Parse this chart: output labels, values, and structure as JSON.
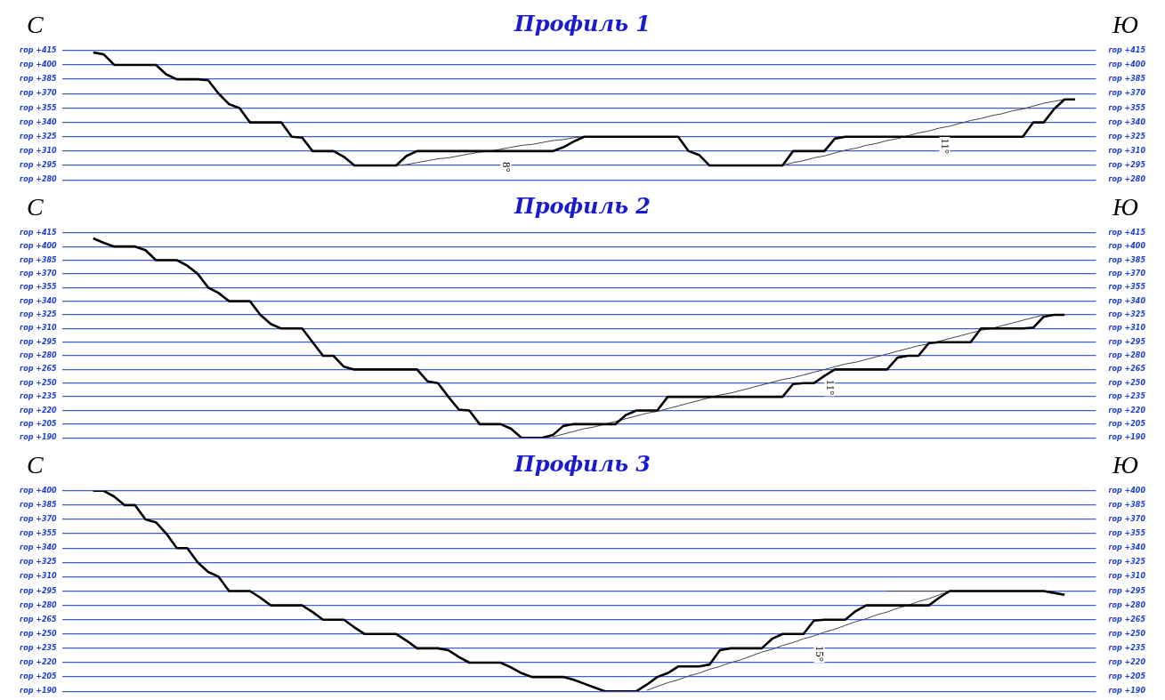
{
  "chart_data": [
    {
      "type": "line",
      "title": "Профиль 1",
      "categories": [
        null,
        null,
        null,
        null,
        null,
        null,
        null,
        null,
        null,
        null,
        null,
        null,
        null,
        null,
        null,
        null,
        null,
        null,
        null,
        null,
        null,
        null,
        null,
        null,
        null,
        null,
        null,
        null,
        null,
        null,
        null,
        null,
        null,
        null,
        null,
        null,
        null,
        null,
        null,
        null,
        null,
        null,
        null,
        null,
        null,
        null,
        null,
        null,
        null,
        null,
        null,
        null,
        null,
        null,
        null,
        null,
        null,
        null,
        null,
        null,
        null,
        null,
        null,
        null,
        null,
        null,
        null,
        null,
        null,
        null,
        null,
        null,
        null,
        null,
        null,
        null,
        null,
        null,
        null,
        null,
        null,
        null,
        null,
        null,
        null,
        null,
        null,
        null,
        null,
        null,
        null,
        null,
        null,
        null,
        null,
        null,
        null,
        null,
        null,
        null
      ],
      "ylim": [
        280,
        415
      ],
      "yticks": [
        {
          "value": 415,
          "label": "гор +415"
        },
        {
          "value": 400,
          "label": "гор +400"
        },
        {
          "value": 385,
          "label": "гор +385"
        },
        {
          "value": 370,
          "label": "гор +370"
        },
        {
          "value": 355,
          "label": "гор +355"
        },
        {
          "value": 340,
          "label": "гор +340"
        },
        {
          "value": 325,
          "label": "гор +325"
        },
        {
          "value": 310,
          "label": "гор +310"
        },
        {
          "value": 295,
          "label": "гор +295"
        },
        {
          "value": 280,
          "label": "гор +280"
        }
      ],
      "y2lim": [
        280,
        415
      ],
      "y2ticks": [
        {
          "value": 415,
          "label": "гор +415"
        },
        {
          "value": 400,
          "label": "гор +400"
        },
        {
          "value": 385,
          "label": "гор +385"
        },
        {
          "value": 370,
          "label": "гор +370"
        },
        {
          "value": 355,
          "label": "гор +355"
        },
        {
          "value": 340,
          "label": "гор +340"
        },
        {
          "value": 325,
          "label": "гор +325"
        },
        {
          "value": 310,
          "label": "гор +310"
        },
        {
          "value": 295,
          "label": "гор +295"
        },
        {
          "value": 280,
          "label": "гор +280"
        }
      ],
      "tick_labels": "y",
      "grid": "y",
      "marker": "none",
      "line_style": "solid",
      "legend": false,
      "series": [
        {
          "color": "#000000",
          "values": [
            null,
            null,
            null,
            413,
            411,
            400,
            400,
            400,
            400,
            400,
            390,
            385,
            385,
            385,
            384,
            370,
            359,
            355,
            340,
            340,
            340,
            340,
            325,
            324,
            310,
            310,
            310,
            304,
            295,
            295,
            295,
            295,
            295,
            305,
            310,
            310,
            310,
            310,
            310,
            310,
            310,
            310,
            310,
            310,
            310,
            310,
            310,
            310,
            314,
            320,
            325,
            325,
            325,
            325,
            325,
            325,
            325,
            325,
            325,
            325,
            310,
            306,
            295,
            295,
            295,
            295,
            295,
            295,
            295,
            295,
            310,
            310,
            310,
            310,
            323,
            325,
            325,
            325,
            325,
            325,
            325,
            325,
            325,
            325,
            325,
            325,
            325,
            325,
            325,
            325,
            325,
            325,
            325,
            340,
            340,
            354,
            364,
            364,
            null,
            null
          ]
        },
        {
          "color": "#444444",
          "values": [
            null,
            null,
            null,
            null,
            null,
            null,
            null,
            null,
            null,
            null,
            null,
            null,
            null,
            null,
            null,
            null,
            null,
            null,
            null,
            null,
            null,
            null,
            null,
            null,
            null,
            null,
            null,
            null,
            null,
            null,
            null,
            null,
            295,
            296,
            298,
            300,
            302,
            303,
            305,
            307,
            309,
            310,
            312,
            314,
            316,
            317,
            319,
            321,
            322,
            324,
            325,
            null,
            null,
            null,
            null,
            null,
            null,
            null,
            null,
            null,
            null,
            null,
            null,
            null,
            null,
            null,
            null,
            null,
            null,
            295,
            298,
            300,
            303,
            305,
            308,
            311,
            313,
            316,
            318,
            321,
            323,
            326,
            329,
            331,
            334,
            336,
            339,
            342,
            344,
            347,
            349,
            352,
            354,
            357,
            360,
            362,
            364,
            null,
            null,
            null
          ]
        }
      ],
      "annotations": [
        "С",
        "Ю",
        "8°",
        "11°"
      ]
    },
    {
      "type": "line",
      "title": "Профиль 2",
      "categories": [
        null,
        null,
        null,
        null,
        null,
        null,
        null,
        null,
        null,
        null,
        null,
        null,
        null,
        null,
        null,
        null,
        null,
        null,
        null,
        null,
        null,
        null,
        null,
        null,
        null,
        null,
        null,
        null,
        null,
        null,
        null,
        null,
        null,
        null,
        null,
        null,
        null,
        null,
        null,
        null,
        null,
        null,
        null,
        null,
        null,
        null,
        null,
        null,
        null,
        null,
        null,
        null,
        null,
        null,
        null,
        null,
        null,
        null,
        null,
        null,
        null,
        null,
        null,
        null,
        null,
        null,
        null,
        null,
        null,
        null,
        null,
        null,
        null,
        null,
        null,
        null,
        null,
        null,
        null,
        null,
        null,
        null,
        null,
        null,
        null,
        null,
        null,
        null,
        null,
        null,
        null,
        null,
        null,
        null,
        null,
        null,
        null,
        null,
        null,
        null
      ],
      "ylim": [
        190,
        415
      ],
      "yticks": [
        {
          "value": 415,
          "label": "гор +415"
        },
        {
          "value": 400,
          "label": "гор +400"
        },
        {
          "value": 385,
          "label": "гор +385"
        },
        {
          "value": 370,
          "label": "гор +370"
        },
        {
          "value": 355,
          "label": "гор +355"
        },
        {
          "value": 340,
          "label": "гор +340"
        },
        {
          "value": 325,
          "label": "гор +325"
        },
        {
          "value": 310,
          "label": "гор +310"
        },
        {
          "value": 295,
          "label": "гор +295"
        },
        {
          "value": 280,
          "label": "гор +280"
        },
        {
          "value": 265,
          "label": "гор +265"
        },
        {
          "value": 250,
          "label": "гор +250"
        },
        {
          "value": 235,
          "label": "гор +235"
        },
        {
          "value": 220,
          "label": "гор +220"
        },
        {
          "value": 205,
          "label": "гор +205"
        },
        {
          "value": 190,
          "label": "гор +190"
        }
      ],
      "y2lim": [
        190,
        415
      ],
      "y2ticks": [
        {
          "value": 415,
          "label": "гор +415"
        },
        {
          "value": 400,
          "label": "гор +400"
        },
        {
          "value": 385,
          "label": "гор +385"
        },
        {
          "value": 370,
          "label": "гор +370"
        },
        {
          "value": 355,
          "label": "гор +355"
        },
        {
          "value": 340,
          "label": "гор +340"
        },
        {
          "value": 325,
          "label": "гор +325"
        },
        {
          "value": 310,
          "label": "гор +310"
        },
        {
          "value": 295,
          "label": "гор +295"
        },
        {
          "value": 280,
          "label": "гор +280"
        },
        {
          "value": 265,
          "label": "гор +265"
        },
        {
          "value": 250,
          "label": "гор +250"
        },
        {
          "value": 235,
          "label": "гор +235"
        },
        {
          "value": 220,
          "label": "гор +220"
        },
        {
          "value": 205,
          "label": "гор +205"
        },
        {
          "value": 190,
          "label": "гор +190"
        }
      ],
      "tick_labels": "y",
      "grid": "y",
      "marker": "none",
      "line_style": "solid",
      "legend": false,
      "series": [
        {
          "color": "#000000",
          "values": [
            null,
            null,
            null,
            409,
            404,
            400,
            400,
            400,
            396,
            385,
            385,
            385,
            379,
            370,
            355,
            349,
            340,
            340,
            340,
            325,
            315,
            310,
            310,
            310,
            295,
            280,
            280,
            268,
            265,
            265,
            265,
            265,
            265,
            265,
            265,
            252,
            250,
            235,
            221,
            220,
            205,
            205,
            205,
            200,
            190,
            190,
            190,
            193,
            203,
            205,
            205,
            205,
            205,
            205,
            215,
            220,
            220,
            220,
            235,
            235,
            235,
            235,
            235,
            235,
            235,
            235,
            235,
            235,
            235,
            235,
            249,
            250,
            250,
            258,
            265,
            265,
            265,
            265,
            265,
            265,
            278,
            280,
            280,
            294,
            295,
            295,
            295,
            295,
            310,
            310,
            310,
            310,
            310,
            311,
            323,
            325,
            325,
            null,
            null,
            null
          ]
        },
        {
          "color": "#444444",
          "values": [
            null,
            null,
            null,
            null,
            null,
            null,
            null,
            null,
            null,
            null,
            null,
            null,
            null,
            null,
            null,
            null,
            null,
            null,
            null,
            null,
            null,
            null,
            null,
            null,
            null,
            null,
            null,
            null,
            null,
            null,
            null,
            null,
            null,
            null,
            null,
            null,
            null,
            null,
            null,
            null,
            null,
            null,
            null,
            null,
            null,
            null,
            null,
            191,
            194,
            197,
            200,
            202,
            205,
            208,
            211,
            214,
            217,
            219,
            222,
            225,
            228,
            231,
            234,
            237,
            239,
            242,
            245,
            248,
            251,
            254,
            256,
            259,
            262,
            265,
            268,
            271,
            273,
            276,
            279,
            282,
            285,
            288,
            291,
            293,
            296,
            299,
            302,
            305,
            308,
            310,
            313,
            316,
            319,
            322,
            325,
            null,
            null,
            null,
            null,
            null
          ]
        }
      ],
      "annotations": [
        "С",
        "Ю",
        "11°"
      ]
    },
    {
      "type": "line",
      "title": "Профиль 3",
      "categories": [
        null,
        null,
        null,
        null,
        null,
        null,
        null,
        null,
        null,
        null,
        null,
        null,
        null,
        null,
        null,
        null,
        null,
        null,
        null,
        null,
        null,
        null,
        null,
        null,
        null,
        null,
        null,
        null,
        null,
        null,
        null,
        null,
        null,
        null,
        null,
        null,
        null,
        null,
        null,
        null,
        null,
        null,
        null,
        null,
        null,
        null,
        null,
        null,
        null,
        null,
        null,
        null,
        null,
        null,
        null,
        null,
        null,
        null,
        null,
        null,
        null,
        null,
        null,
        null,
        null,
        null,
        null,
        null,
        null,
        null,
        null,
        null,
        null,
        null,
        null,
        null,
        null,
        null,
        null,
        null,
        null,
        null,
        null,
        null,
        null,
        null,
        null,
        null,
        null,
        null,
        null,
        null,
        null,
        null,
        null,
        null,
        null,
        null,
        null,
        null
      ],
      "ylim": [
        190,
        400
      ],
      "yticks": [
        {
          "value": 400,
          "label": "гор +400"
        },
        {
          "value": 385,
          "label": "гор +385"
        },
        {
          "value": 370,
          "label": "гор +370"
        },
        {
          "value": 355,
          "label": "гор +355"
        },
        {
          "value": 340,
          "label": "гор +340"
        },
        {
          "value": 325,
          "label": "гор +325"
        },
        {
          "value": 310,
          "label": "гор +310"
        },
        {
          "value": 295,
          "label": "гор +295"
        },
        {
          "value": 280,
          "label": "гор +280"
        },
        {
          "value": 265,
          "label": "гор +265"
        },
        {
          "value": 250,
          "label": "гор +250"
        },
        {
          "value": 235,
          "label": "гор +235"
        },
        {
          "value": 220,
          "label": "гор +220"
        },
        {
          "value": 205,
          "label": "гор +205"
        },
        {
          "value": 190,
          "label": "гор +190"
        }
      ],
      "y2lim": [
        190,
        400
      ],
      "y2ticks": [
        {
          "value": 400,
          "label": "гор +400"
        },
        {
          "value": 385,
          "label": "гор +385"
        },
        {
          "value": 370,
          "label": "гор +370"
        },
        {
          "value": 355,
          "label": "гор +355"
        },
        {
          "value": 340,
          "label": "гор +340"
        },
        {
          "value": 325,
          "label": "гор +325"
        },
        {
          "value": 310,
          "label": "гор +310"
        },
        {
          "value": 295,
          "label": "гор +295"
        },
        {
          "value": 280,
          "label": "гор +280"
        },
        {
          "value": 265,
          "label": "гор +265"
        },
        {
          "value": 250,
          "label": "гор +250"
        },
        {
          "value": 235,
          "label": "гор +235"
        },
        {
          "value": 220,
          "label": "гор +220"
        },
        {
          "value": 205,
          "label": "гор +205"
        },
        {
          "value": 190,
          "label": "гор +190"
        }
      ],
      "tick_labels": "y",
      "grid": "y",
      "marker": "none",
      "line_style": "solid",
      "legend": false,
      "series": [
        {
          "color": "#000000",
          "values": [
            null,
            null,
            null,
            400,
            400,
            394,
            385,
            385,
            370,
            367,
            355,
            340,
            340,
            325,
            315,
            310,
            295,
            295,
            295,
            288,
            280,
            280,
            280,
            280,
            273,
            265,
            265,
            265,
            257,
            250,
            250,
            250,
            250,
            243,
            235,
            235,
            235,
            233,
            226,
            220,
            220,
            220,
            220,
            215,
            209,
            205,
            205,
            205,
            205,
            202,
            198,
            194,
            190,
            190,
            190,
            190,
            197,
            205,
            209,
            216,
            216,
            216,
            218,
            233,
            235,
            235,
            235,
            235,
            245,
            250,
            250,
            250,
            264,
            265,
            265,
            265,
            274,
            280,
            280,
            280,
            280,
            280,
            280,
            280,
            288,
            295,
            295,
            295,
            295,
            295,
            295,
            295,
            295,
            295,
            295,
            293,
            291,
            null,
            null,
            null
          ]
        },
        {
          "color": "#444444",
          "values": [
            null,
            null,
            null,
            null,
            null,
            null,
            null,
            null,
            null,
            null,
            null,
            null,
            null,
            null,
            null,
            null,
            null,
            null,
            null,
            null,
            null,
            null,
            null,
            null,
            null,
            null,
            null,
            null,
            null,
            null,
            null,
            null,
            null,
            null,
            null,
            null,
            null,
            null,
            null,
            null,
            null,
            null,
            null,
            null,
            null,
            null,
            null,
            null,
            null,
            null,
            null,
            null,
            null,
            null,
            null,
            null,
            191,
            195,
            199,
            202,
            206,
            209,
            213,
            216,
            220,
            223,
            227,
            231,
            234,
            238,
            241,
            245,
            248,
            252,
            255,
            259,
            263,
            266,
            270,
            273,
            277,
            280,
            284,
            287,
            291,
            295,
            null,
            null,
            null,
            null,
            null,
            null,
            null,
            null,
            null,
            null,
            null,
            null,
            null,
            null
          ]
        },
        {
          "color": "#444444",
          "values": [
            null,
            null,
            null,
            null,
            null,
            null,
            null,
            null,
            null,
            null,
            null,
            null,
            null,
            null,
            null,
            null,
            null,
            null,
            null,
            null,
            null,
            null,
            null,
            null,
            null,
            null,
            null,
            null,
            null,
            null,
            null,
            null,
            null,
            null,
            null,
            null,
            null,
            null,
            null,
            null,
            null,
            null,
            null,
            null,
            null,
            null,
            null,
            null,
            null,
            null,
            null,
            null,
            null,
            null,
            null,
            null,
            null,
            null,
            null,
            null,
            null,
            null,
            null,
            null,
            null,
            null,
            null,
            null,
            null,
            null,
            null,
            null,
            null,
            null,
            null,
            null,
            null,
            null,
            null,
            295,
            295,
            295,
            295,
            295,
            295,
            295,
            null,
            null,
            null,
            null,
            null,
            null,
            null,
            null,
            null,
            null,
            null,
            null,
            null,
            null
          ]
        }
      ],
      "annotations": [
        "С",
        "Ю",
        "15°"
      ]
    }
  ]
}
